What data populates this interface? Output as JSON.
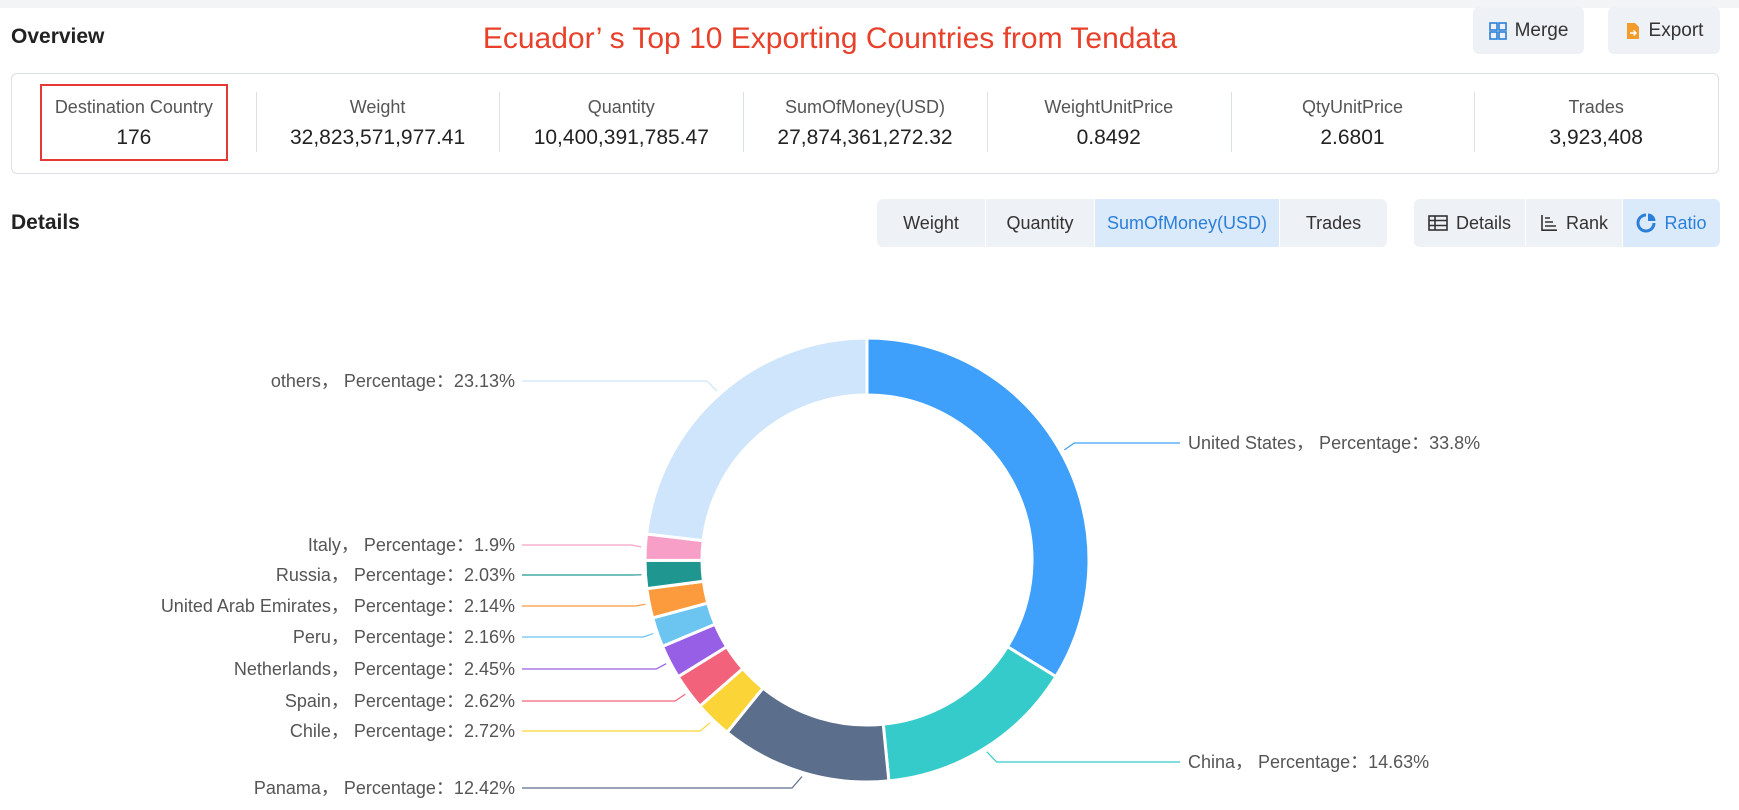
{
  "page_title": "Ecuador’ s Top 10 Exporting Countries from Tendata",
  "overview": {
    "title": "Overview",
    "buttons": [
      {
        "label": "Merge",
        "icon": "merge-icon"
      },
      {
        "label": "Export",
        "icon": "export-icon"
      }
    ],
    "metrics": [
      {
        "label": "Destination Country",
        "value": "176"
      },
      {
        "label": "Weight",
        "value": "32,823,571,977.41"
      },
      {
        "label": "Quantity",
        "value": "10,400,391,785.47"
      },
      {
        "label": "SumOfMoney(USD)",
        "value": "27,874,361,272.32"
      },
      {
        "label": "WeightUnitPrice",
        "value": "0.8492"
      },
      {
        "label": "QtyUnitPrice",
        "value": "2.6801"
      },
      {
        "label": "Trades",
        "value": "3,923,408"
      }
    ]
  },
  "details": {
    "title": "Details",
    "metric_tabs": [
      "Weight",
      "Quantity",
      "SumOfMoney(USD)",
      "Trades"
    ],
    "active_metric_tab": "SumOfMoney(USD)",
    "view_tabs": [
      {
        "label": "Details",
        "icon": "table-icon"
      },
      {
        "label": "Rank",
        "icon": "rank-icon"
      },
      {
        "label": "Ratio",
        "icon": "pie-icon"
      }
    ],
    "active_view_tab": "Ratio"
  },
  "chart_data": {
    "type": "pie",
    "variant": "donut",
    "label_template": "{name}，  Percentage：{value}%",
    "slices": [
      {
        "name": "United States",
        "value": 33.8,
        "color": "#3ea0fa"
      },
      {
        "name": "China",
        "value": 14.63,
        "color": "#36cbcb"
      },
      {
        "name": "Panama",
        "value": 12.42,
        "color": "#5b6e8c"
      },
      {
        "name": "Chile",
        "value": 2.72,
        "color": "#fbd437"
      },
      {
        "name": "Spain",
        "value": 2.62,
        "color": "#f2637b"
      },
      {
        "name": "Netherlands",
        "value": 2.45,
        "color": "#975fe5"
      },
      {
        "name": "Peru",
        "value": 2.16,
        "color": "#6cc5f0"
      },
      {
        "name": "United Arab Emirates",
        "value": 2.14,
        "color": "#fb9b3e"
      },
      {
        "name": "Russia",
        "value": 2.03,
        "color": "#1f9690"
      },
      {
        "name": "Italy",
        "value": 1.9,
        "color": "#f89fc8"
      },
      {
        "name": "others",
        "value": 23.13,
        "color": "#cfe5fc"
      }
    ]
  }
}
